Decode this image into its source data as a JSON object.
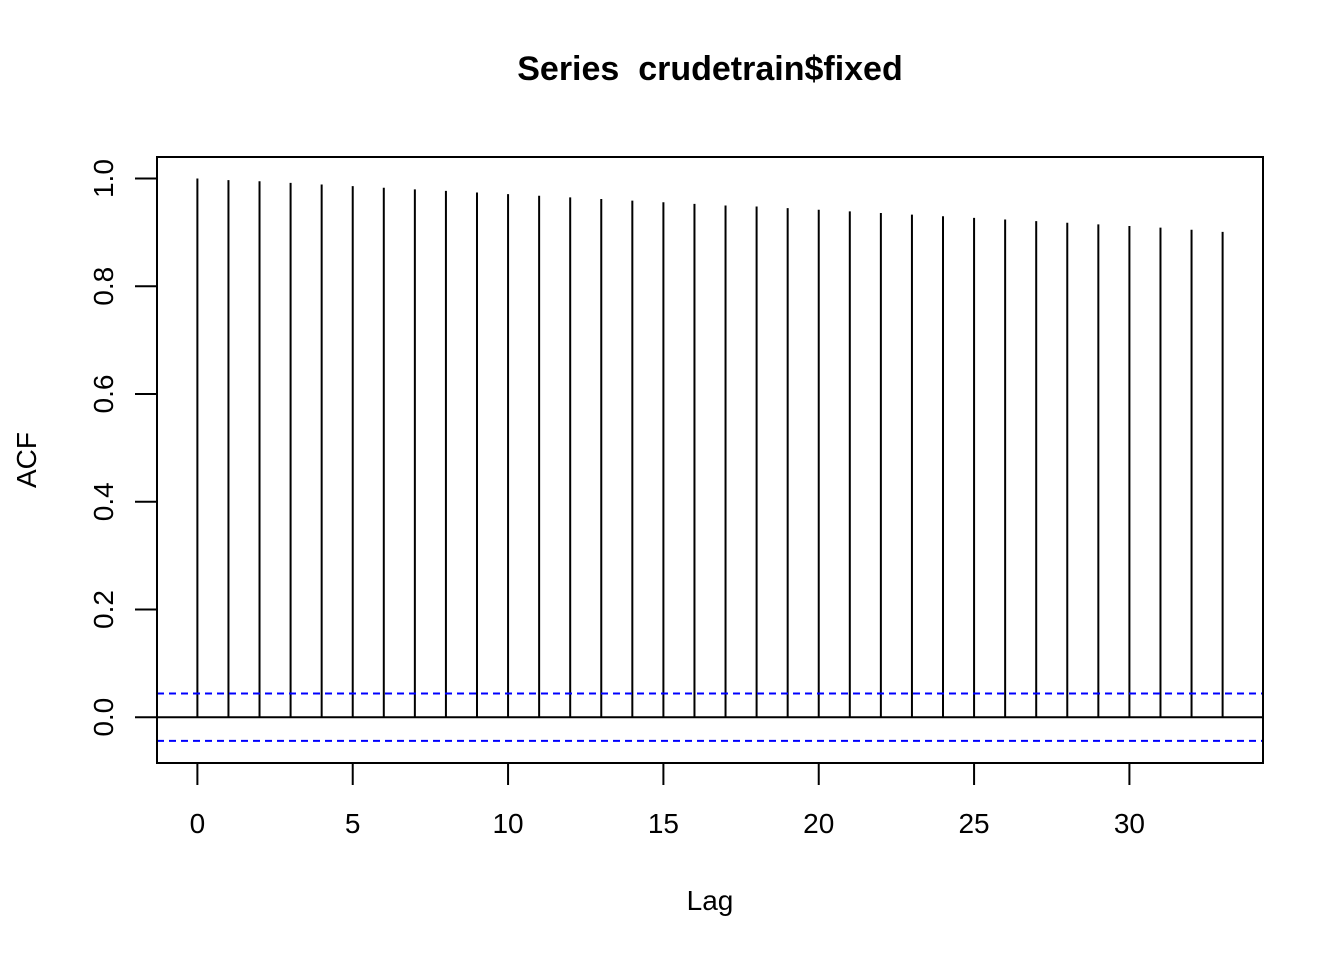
{
  "chart_data": {
    "type": "bar",
    "title": "Series  crudetrain$fixed",
    "xlabel": "Lag",
    "ylabel": "ACF",
    "xlim": [
      -1.3,
      34.3
    ],
    "ylim": [
      -0.085,
      1.04
    ],
    "xticks": [
      "0",
      "5",
      "10",
      "15",
      "20",
      "25",
      "30"
    ],
    "yticks": [
      "0.0",
      "0.2",
      "0.4",
      "0.6",
      "0.8",
      "1.0"
    ],
    "confidence_band": 0.044,
    "colors": {
      "bars": "#000000",
      "confidence_lines": "#0000ff",
      "zero_line": "#000000"
    },
    "lags": [
      0,
      1,
      2,
      3,
      4,
      5,
      6,
      7,
      8,
      9,
      10,
      11,
      12,
      13,
      14,
      15,
      16,
      17,
      18,
      19,
      20,
      21,
      22,
      23,
      24,
      25,
      26,
      27,
      28,
      29,
      30,
      31,
      32,
      33
    ],
    "values": [
      1.0,
      0.997,
      0.995,
      0.992,
      0.989,
      0.986,
      0.983,
      0.98,
      0.977,
      0.974,
      0.971,
      0.968,
      0.965,
      0.962,
      0.959,
      0.956,
      0.953,
      0.95,
      0.948,
      0.945,
      0.942,
      0.939,
      0.936,
      0.933,
      0.93,
      0.927,
      0.924,
      0.921,
      0.918,
      0.915,
      0.912,
      0.909,
      0.905,
      0.901
    ]
  }
}
